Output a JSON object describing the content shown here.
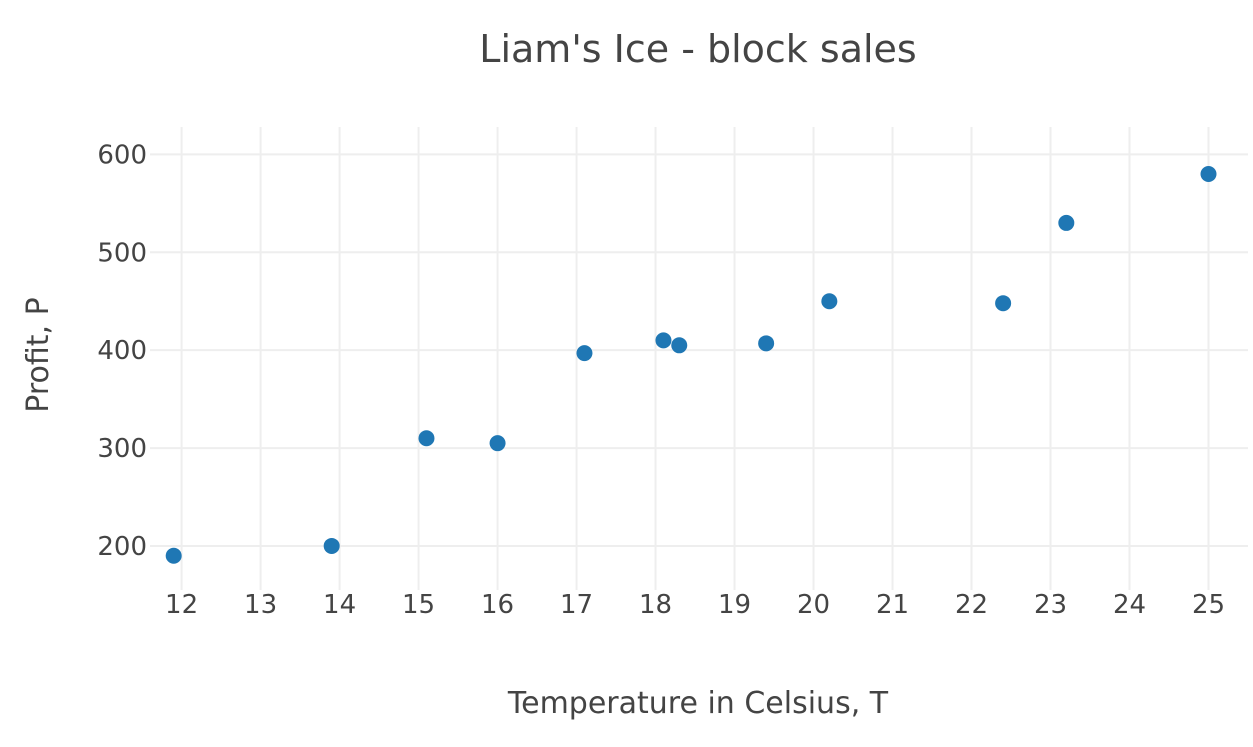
{
  "chart_data": {
    "type": "scatter",
    "title": "Liam's Ice - block sales",
    "xlabel": "Temperature in Celsius, T",
    "ylabel": "Profit, P",
    "xlim": [
      11.6,
      25.5
    ],
    "ylim": [
      155,
      628
    ],
    "x_ticks": [
      12,
      13,
      14,
      15,
      16,
      17,
      18,
      19,
      20,
      21,
      22,
      23,
      24,
      25
    ],
    "y_ticks": [
      200,
      300,
      400,
      500,
      600
    ],
    "grid": true,
    "legend": "none",
    "series": [
      {
        "color": "#1f77b4",
        "points": [
          {
            "x": 11.9,
            "y": 190
          },
          {
            "x": 13.9,
            "y": 200
          },
          {
            "x": 15.1,
            "y": 310
          },
          {
            "x": 16.0,
            "y": 305
          },
          {
            "x": 17.1,
            "y": 397
          },
          {
            "x": 18.1,
            "y": 410
          },
          {
            "x": 18.3,
            "y": 405
          },
          {
            "x": 19.4,
            "y": 407
          },
          {
            "x": 20.2,
            "y": 450
          },
          {
            "x": 22.4,
            "y": 448
          },
          {
            "x": 23.2,
            "y": 530
          },
          {
            "x": 25.0,
            "y": 580
          }
        ]
      }
    ]
  }
}
